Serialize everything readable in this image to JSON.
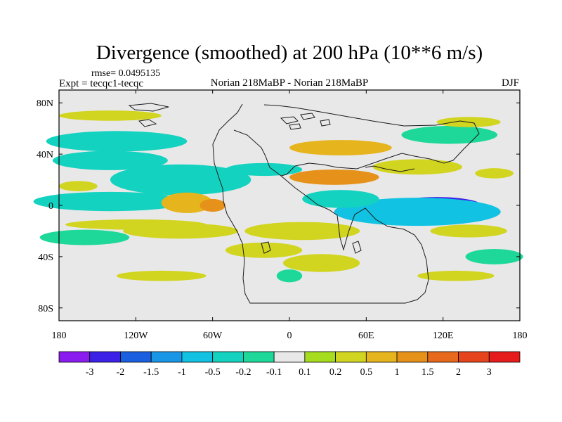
{
  "chart_data": {
    "type": "heatmap",
    "title": "Divergence (smoothed) at 200 hPa (10**6 m/s)",
    "rmse_label": "rmse= 0.0495135",
    "left_label": "Expt = tecqc1-tecqc",
    "center_label": "Norian 218MaBP - Norian 218MaBP",
    "right_label": "DJF",
    "x_axis": {
      "range": [
        -180,
        180
      ],
      "ticks": [
        -180,
        -120,
        -60,
        0,
        60,
        120,
        180
      ],
      "tick_labels": [
        "180",
        "120W",
        "60W",
        "0",
        "60E",
        "120E",
        "180"
      ]
    },
    "y_axis": {
      "range": [
        -90,
        90
      ],
      "ticks": [
        80,
        40,
        0,
        -40,
        -80
      ],
      "tick_labels": [
        "80N",
        "40N",
        "0",
        "40S",
        "80S"
      ]
    },
    "colorbar": {
      "colors": [
        "#8a1cf0",
        "#3c22e6",
        "#1a5fe0",
        "#1a96e6",
        "#12c2e2",
        "#14d2c0",
        "#1ed89a",
        "#e8e8e8",
        "#a6dc1e",
        "#d2d51f",
        "#e6b41c",
        "#e6921a",
        "#e6691c",
        "#e6441c",
        "#e61c1c"
      ],
      "labels": [
        "-3",
        "-2",
        "-1.5",
        "-1",
        "-0.5",
        "-0.2",
        "-0.1",
        "0.1",
        "0.2",
        "0.5",
        "1",
        "1.5",
        "2",
        "3"
      ]
    },
    "field_features": [
      {
        "lon": 115,
        "lat": 0,
        "lon_width": 70,
        "lat_width": 13,
        "value": -2.1
      },
      {
        "lon": 100,
        "lat": -5,
        "lon_width": 130,
        "lat_width": 22,
        "value": -0.7
      },
      {
        "lon": -140,
        "lat": 3,
        "lon_width": 120,
        "lat_width": 15,
        "value": -0.45
      },
      {
        "lon": -85,
        "lat": 20,
        "lon_width": 110,
        "lat_width": 24,
        "value": -0.3
      },
      {
        "lon": -140,
        "lat": 35,
        "lon_width": 90,
        "lat_width": 15,
        "value": -0.3
      },
      {
        "lon": -135,
        "lat": 50,
        "lon_width": 110,
        "lat_width": 16,
        "value": -0.3
      },
      {
        "lon": -20,
        "lat": 28,
        "lon_width": 60,
        "lat_width": 10,
        "value": -0.3
      },
      {
        "lon": 40,
        "lat": 5,
        "lon_width": 60,
        "lat_width": 14,
        "value": -0.3
      },
      {
        "lon": 125,
        "lat": 55,
        "lon_width": 75,
        "lat_width": 14,
        "value": -0.2
      },
      {
        "lon": 160,
        "lat": -40,
        "lon_width": 45,
        "lat_width": 12,
        "value": -0.2
      },
      {
        "lon": -160,
        "lat": -25,
        "lon_width": 70,
        "lat_width": 12,
        "value": -0.2
      },
      {
        "lon": 0,
        "lat": -55,
        "lon_width": 20,
        "lat_width": 10,
        "value": -0.2
      },
      {
        "lon": -165,
        "lat": 15,
        "lon_width": 30,
        "lat_width": 8,
        "value": 0.3
      },
      {
        "lon": -80,
        "lat": 2,
        "lon_width": 40,
        "lat_width": 16,
        "value": 0.5
      },
      {
        "lon": -60,
        "lat": 0,
        "lon_width": 20,
        "lat_width": 10,
        "value": 1.1
      },
      {
        "lon": -85,
        "lat": -20,
        "lon_width": 90,
        "lat_width": 12,
        "value": 0.3
      },
      {
        "lon": -120,
        "lat": -15,
        "lon_width": 110,
        "lat_width": 8,
        "value": 0.3
      },
      {
        "lon": 40,
        "lat": 45,
        "lon_width": 80,
        "lat_width": 12,
        "value": 0.9
      },
      {
        "lon": 35,
        "lat": 22,
        "lon_width": 70,
        "lat_width": 12,
        "value": 1.2
      },
      {
        "lon": 10,
        "lat": -20,
        "lon_width": 90,
        "lat_width": 14,
        "value": 0.4
      },
      {
        "lon": -20,
        "lat": -35,
        "lon_width": 60,
        "lat_width": 12,
        "value": 0.3
      },
      {
        "lon": 25,
        "lat": -45,
        "lon_width": 60,
        "lat_width": 14,
        "value": 0.25
      },
      {
        "lon": 100,
        "lat": 30,
        "lon_width": 70,
        "lat_width": 12,
        "value": 0.35
      },
      {
        "lon": 160,
        "lat": 25,
        "lon_width": 30,
        "lat_width": 8,
        "value": 0.4
      },
      {
        "lon": 140,
        "lat": -20,
        "lon_width": 60,
        "lat_width": 10,
        "value": 0.35
      },
      {
        "lon": 140,
        "lat": 65,
        "lon_width": 50,
        "lat_width": 8,
        "value": 0.25
      },
      {
        "lon": -140,
        "lat": 70,
        "lon_width": 80,
        "lat_width": 8,
        "value": 0.2
      },
      {
        "lon": -100,
        "lat": -55,
        "lon_width": 70,
        "lat_width": 8,
        "value": 0.2
      },
      {
        "lon": 130,
        "lat": -55,
        "lon_width": 60,
        "lat_width": 8,
        "value": 0.2
      }
    ]
  }
}
